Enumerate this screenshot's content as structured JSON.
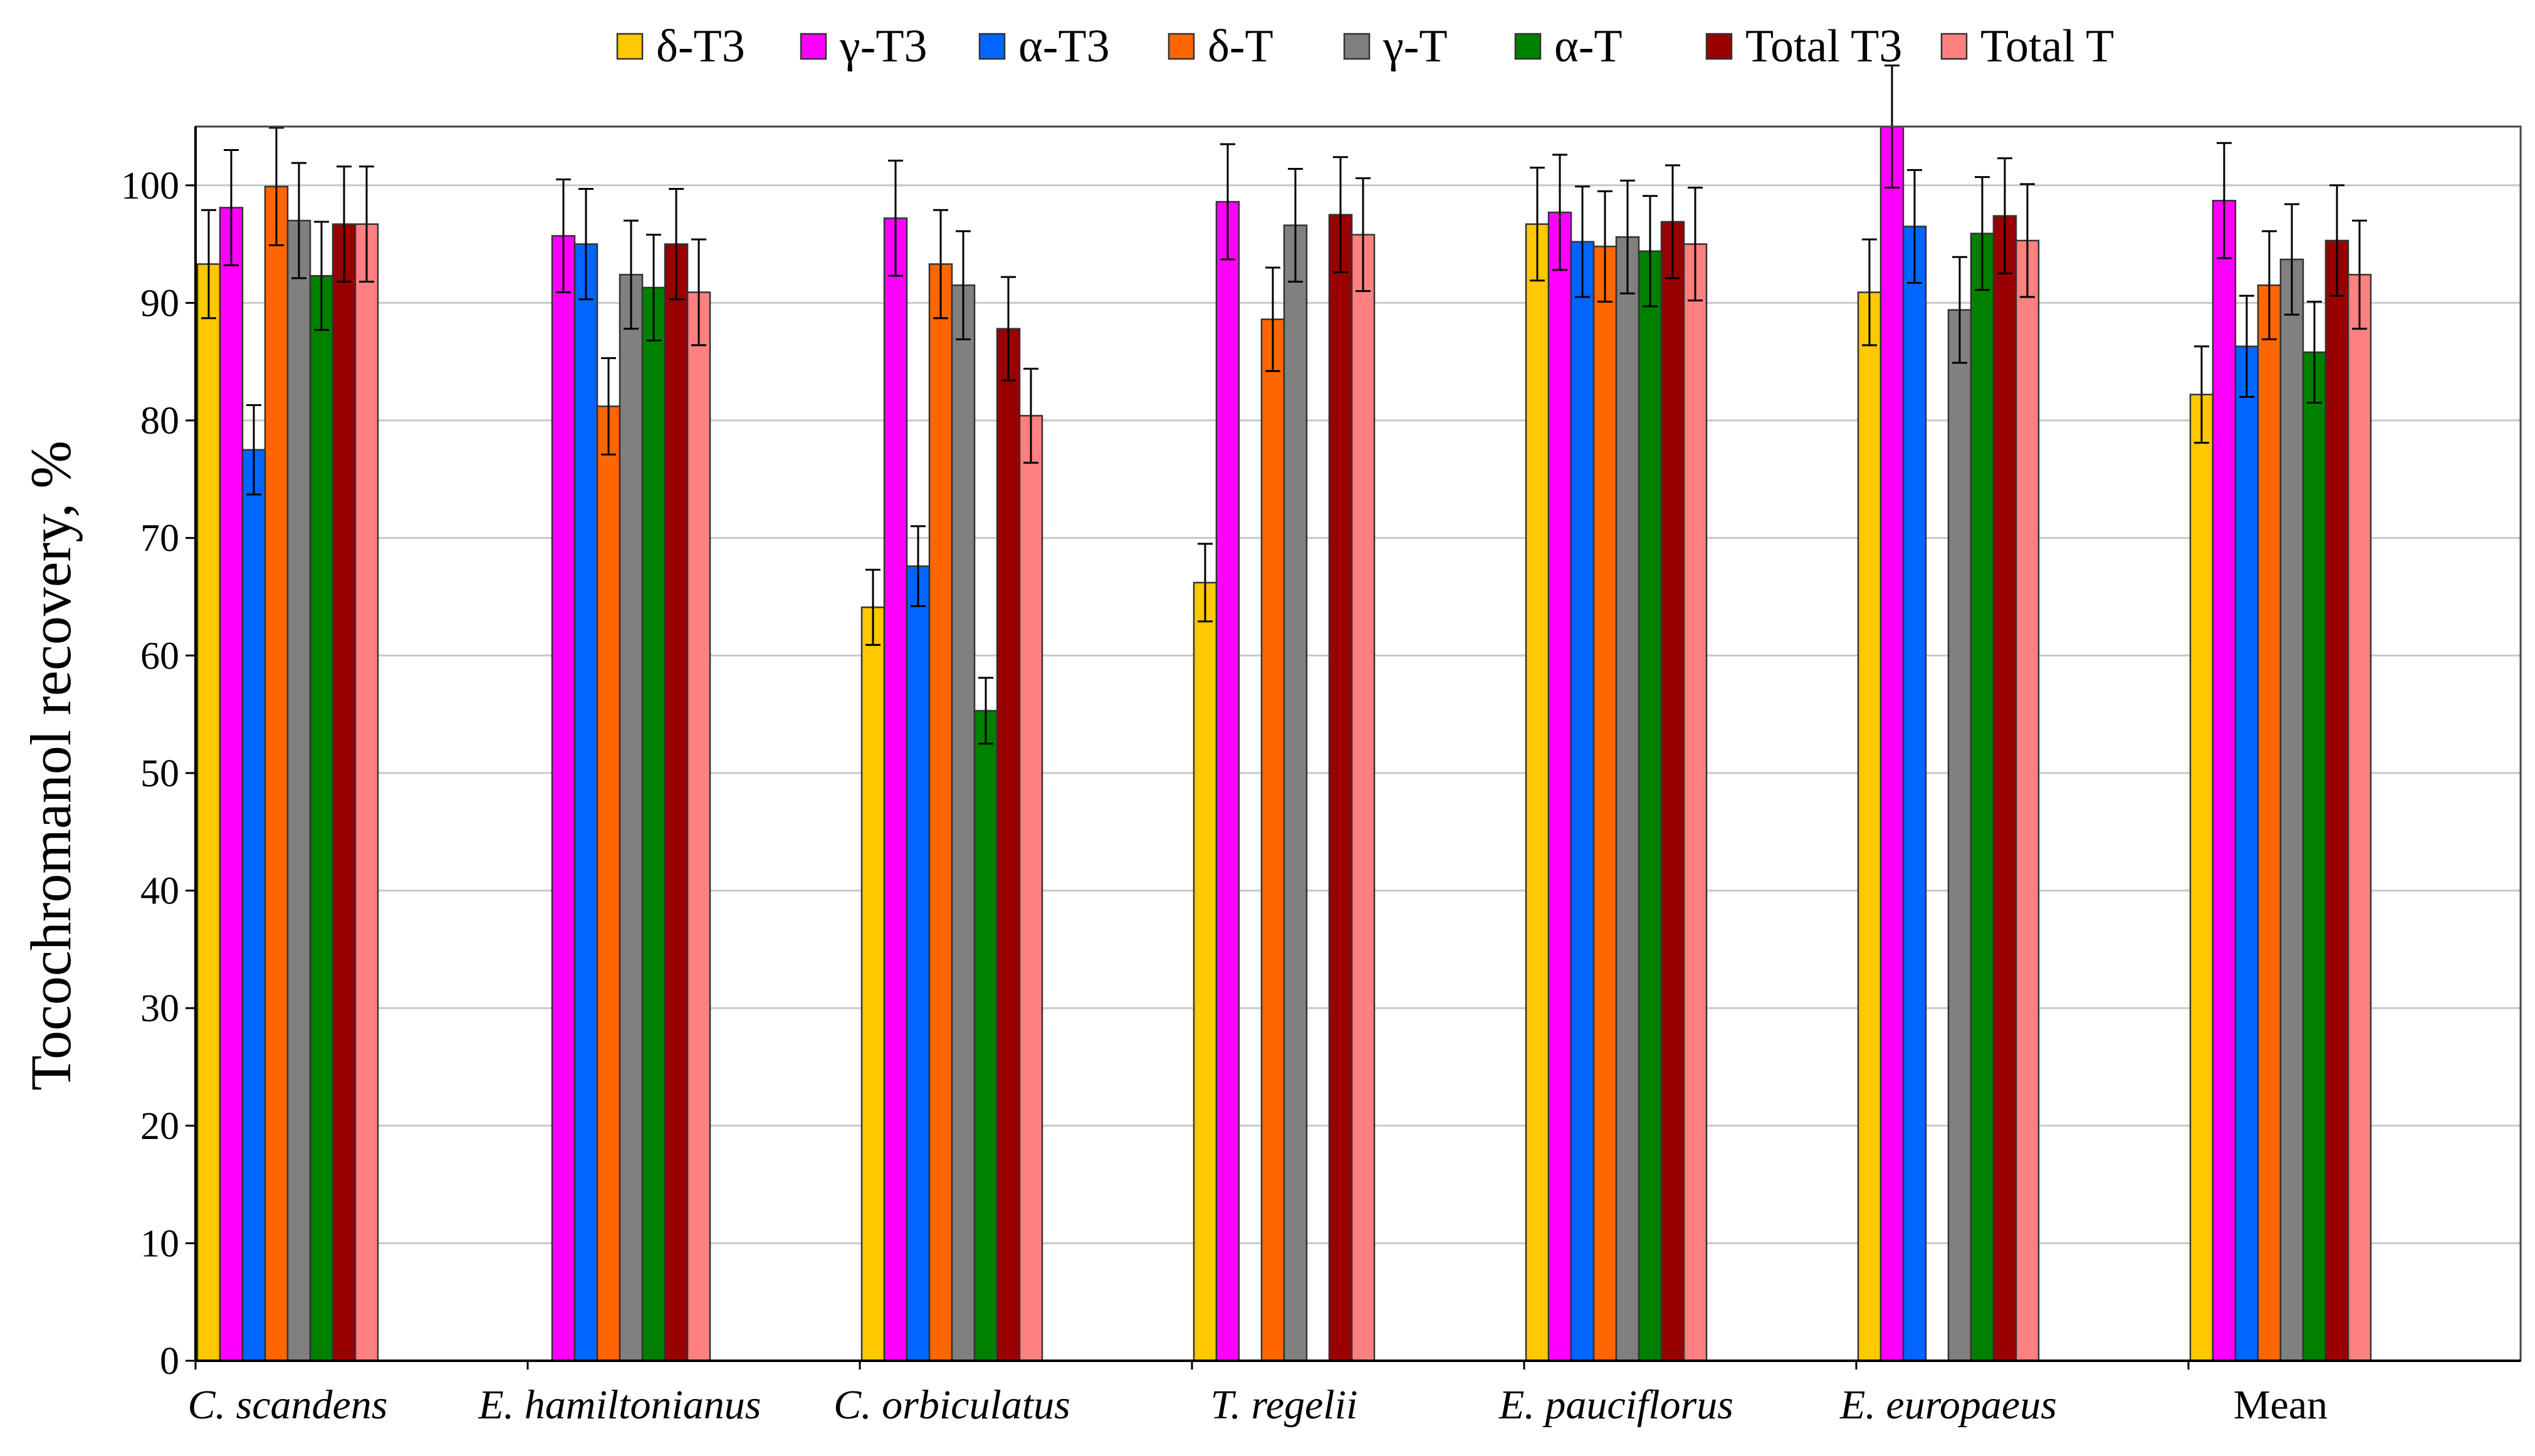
{
  "chart_data": {
    "type": "bar",
    "title": "",
    "xlabel": "",
    "ylabel": "Tocochromanol recovery, %",
    "ylim": [
      0,
      105
    ],
    "yticks": [
      0,
      10,
      20,
      30,
      40,
      50,
      60,
      70,
      80,
      90,
      100
    ],
    "grid": true,
    "legend_position": "top",
    "categories": [
      "C. scandens",
      "E. hamiltonianus",
      "C. orbiculatus",
      "T. regelii",
      "E. pauciflorus",
      "E. europaeus",
      "Mean"
    ],
    "italic_categories": [
      true,
      true,
      true,
      true,
      true,
      true,
      false
    ],
    "series": [
      {
        "name": "δ-T3",
        "color": "#FFC800",
        "values": [
          93.3,
          null,
          64.1,
          66.2,
          96.7,
          90.9,
          82.2
        ],
        "errors": [
          4.6,
          null,
          3.2,
          3.3,
          4.8,
          4.5,
          4.1
        ]
      },
      {
        "name": "γ-T3",
        "color": "#FF00FF",
        "values": [
          98.1,
          95.7,
          97.2,
          98.6,
          97.7,
          105.0,
          98.7
        ],
        "errors": [
          4.9,
          4.8,
          4.9,
          4.9,
          4.9,
          5.2,
          4.9
        ]
      },
      {
        "name": "α-T3",
        "color": "#0066FF",
        "values": [
          77.5,
          95.0,
          67.6,
          null,
          95.2,
          96.5,
          86.3
        ],
        "errors": [
          3.8,
          4.7,
          3.4,
          null,
          4.7,
          4.8,
          4.3
        ]
      },
      {
        "name": "δ-T",
        "color": "#FF6600",
        "values": [
          99.9,
          81.2,
          93.3,
          88.6,
          94.8,
          null,
          91.5
        ],
        "errors": [
          5.0,
          4.1,
          4.6,
          4.4,
          4.7,
          null,
          4.6
        ]
      },
      {
        "name": "γ-T",
        "color": "#808080",
        "values": [
          97.0,
          92.4,
          91.5,
          96.6,
          95.6,
          89.4,
          93.7
        ],
        "errors": [
          4.9,
          4.6,
          4.6,
          4.8,
          4.8,
          4.5,
          4.7
        ]
      },
      {
        "name": "α-T",
        "color": "#008000",
        "values": [
          92.3,
          91.3,
          55.3,
          null,
          94.4,
          95.9,
          85.8
        ],
        "errors": [
          4.6,
          4.5,
          2.8,
          null,
          4.7,
          4.8,
          4.3
        ]
      },
      {
        "name": "Total T3",
        "color": "#990000",
        "values": [
          96.7,
          95.0,
          87.8,
          97.5,
          96.9,
          97.4,
          95.3
        ],
        "errors": [
          4.9,
          4.7,
          4.4,
          4.9,
          4.8,
          4.9,
          4.7
        ]
      },
      {
        "name": "Total T",
        "color": "#FF8080",
        "values": [
          96.7,
          90.9,
          80.4,
          95.8,
          95.0,
          95.3,
          92.4
        ],
        "errors": [
          4.9,
          4.5,
          4.0,
          4.8,
          4.8,
          4.8,
          4.6
        ]
      }
    ]
  }
}
